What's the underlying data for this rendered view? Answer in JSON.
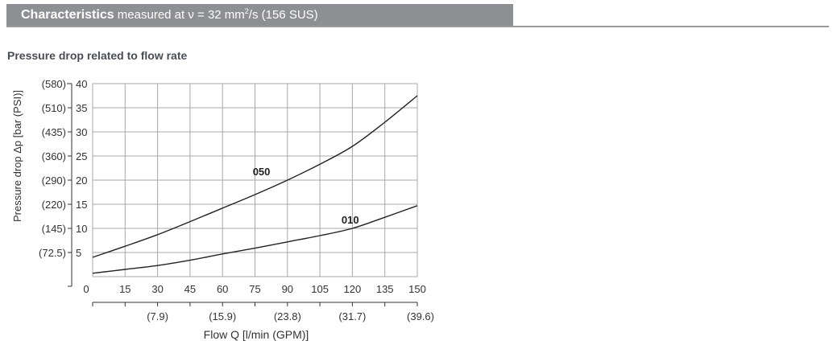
{
  "header": {
    "title_bold": "Characteristics",
    "title_rest_prefix": "measured at ν = 32 mm",
    "superscript": "2",
    "title_rest_suffix": "/s (156 SUS)"
  },
  "subtitle": "Pressure drop related to flow rate",
  "colors": {
    "header_bg": "#8e8f92",
    "grid": "#a8a8a8",
    "curve": "#222222"
  },
  "chart_data": {
    "type": "line",
    "title": "Pressure drop related to flow rate",
    "xlabel": "Flow Q [l/min (GPM)]",
    "ylabel": "Pressure drop Δp [bar (PSI)]",
    "xlim": [
      0,
      150
    ],
    "ylim": [
      0,
      40
    ],
    "grid": true,
    "x_ticks": [
      "0",
      "15",
      "30",
      "45",
      "60",
      "75",
      "90",
      "105",
      "120",
      "135",
      "150"
    ],
    "x_secondary_ticks": [
      "(7.9)",
      "(15.9)",
      "(23.8)",
      "(31.7)",
      "(39.6)"
    ],
    "x_secondary_positions": [
      30,
      60,
      90,
      120,
      150
    ],
    "y_ticks": [
      "40",
      "35",
      "30",
      "25",
      "20",
      "15",
      "10",
      "5"
    ],
    "y_secondary_ticks": [
      "(580)",
      "(510)",
      "(435)",
      "(360)",
      "(290)",
      "(220)",
      "(145)",
      "(72.5)"
    ],
    "y_tick_values": [
      40,
      35,
      30,
      25,
      20,
      15,
      10,
      5
    ],
    "x": [
      0,
      15,
      30,
      45,
      60,
      75,
      90,
      105,
      120,
      135,
      150
    ],
    "series": [
      {
        "name": "050",
        "values": [
          4.0,
          6.3,
          8.7,
          11.4,
          14.2,
          17.0,
          20.0,
          23.3,
          27.0,
          32.0,
          37.5
        ],
        "label_at": [
          78,
          21
        ]
      },
      {
        "name": "010",
        "values": [
          0.7,
          1.5,
          2.3,
          3.4,
          4.7,
          5.9,
          7.2,
          8.5,
          10.0,
          12.3,
          14.7
        ],
        "label_at": [
          119,
          11
        ]
      }
    ]
  }
}
